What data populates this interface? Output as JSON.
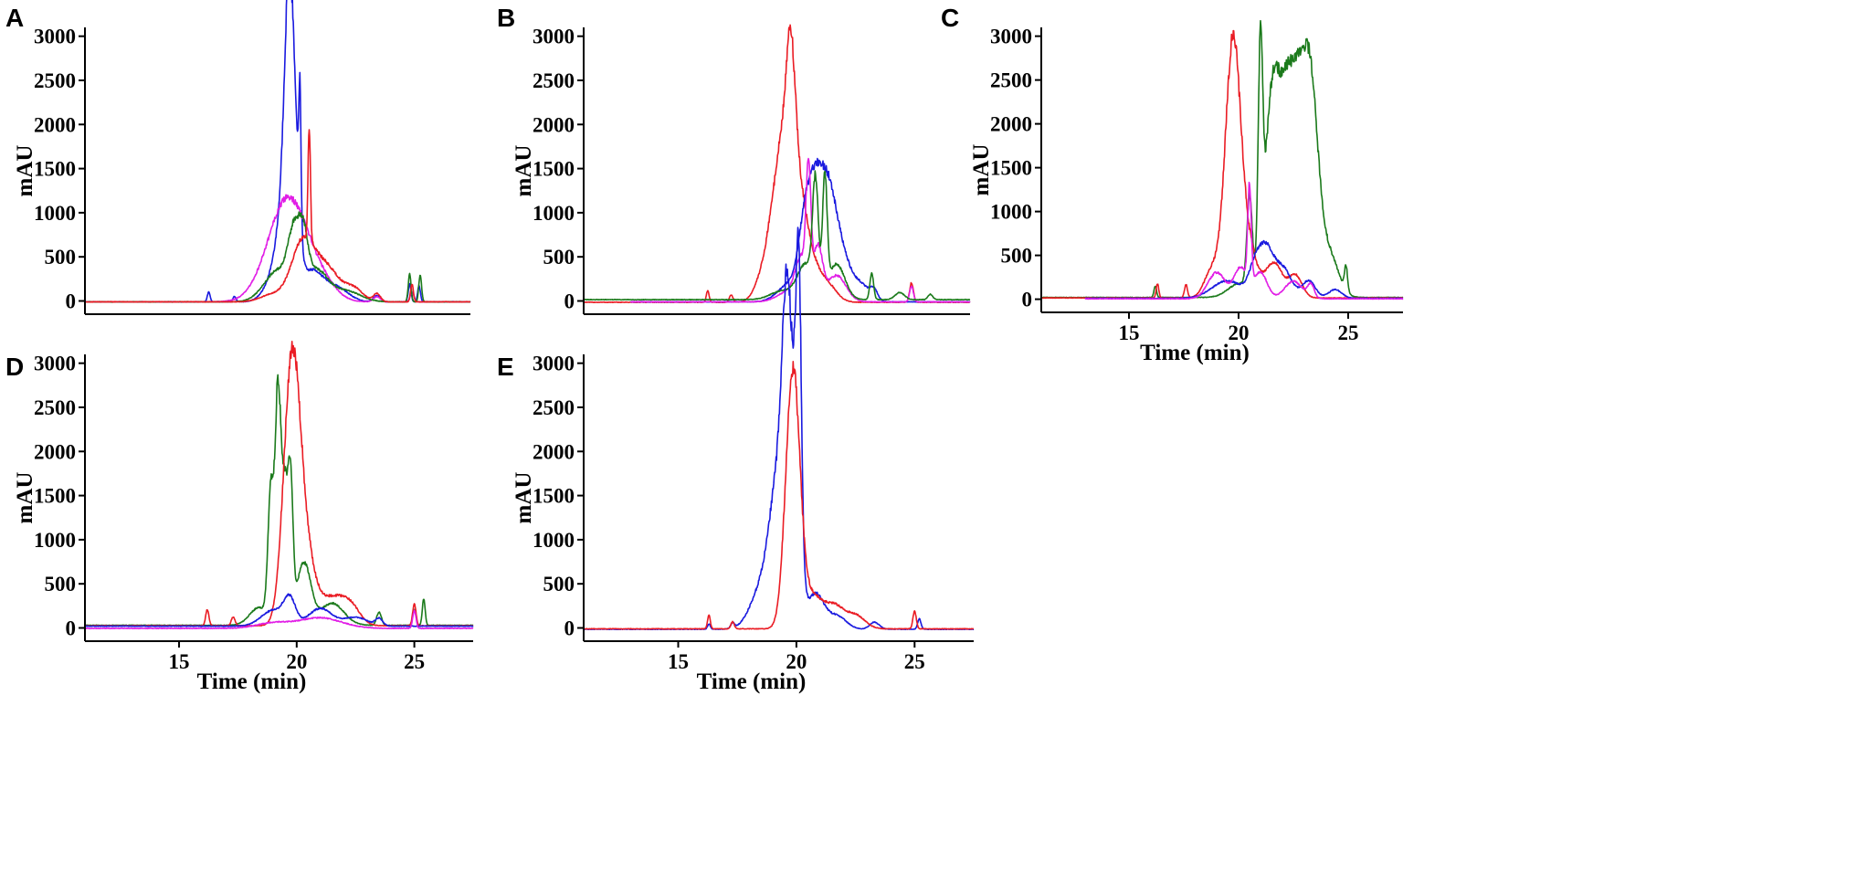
{
  "figure": {
    "panel_letters": [
      "A",
      "B",
      "C",
      "D",
      "E"
    ]
  },
  "series_colors": {
    "blue": "#1a1adf",
    "magenta": "#e11ee6",
    "green": "#1b7a1b",
    "red": "#ea1c24"
  },
  "chart_data": [
    {
      "panel": "A",
      "type": "line",
      "ylabel": "mAU",
      "xlabel": "",
      "xlim": [
        11,
        27.5
      ],
      "ylim": [
        -150,
        3100
      ],
      "yticks": [
        0,
        500,
        1000,
        1500,
        2000,
        2500,
        3000
      ],
      "xticks": [],
      "xtick_labels": [],
      "show_xtitle": false,
      "series": [
        {
          "name": "blue",
          "color": "#1a1adf",
          "base": -10,
          "start": 11,
          "peaks": [
            [
              16.3,
              110,
              0.06
            ],
            [
              17.4,
              60,
              0.07
            ],
            [
              19.2,
              300,
              0.45
            ],
            [
              19.5,
              700,
              0.3
            ],
            [
              19.75,
              2920,
              0.2
            ],
            [
              20.05,
              800,
              0.18
            ],
            [
              20.2,
              1450,
              0.05
            ],
            [
              20.7,
              350,
              0.5
            ],
            [
              21.8,
              150,
              0.5
            ],
            [
              23.5,
              70,
              0.15
            ],
            [
              24.9,
              200,
              0.06
            ],
            [
              25.3,
              180,
              0.06
            ]
          ]
        },
        {
          "name": "magenta",
          "color": "#e11ee6",
          "base": -10,
          "start": 11,
          "peaks": [
            [
              19.7,
              1180,
              0.85
            ],
            [
              21.2,
              140,
              0.6
            ],
            [
              23.5,
              60,
              0.15
            ],
            [
              25.0,
              110,
              0.08
            ]
          ]
        },
        {
          "name": "green",
          "color": "#1b7a1b",
          "base": -10,
          "start": 11,
          "peaks": [
            [
              19.3,
              360,
              0.6
            ],
            [
              19.95,
              600,
              0.25
            ],
            [
              20.35,
              500,
              0.2
            ],
            [
              20.9,
              350,
              0.5
            ],
            [
              22.2,
              120,
              0.6
            ],
            [
              24.9,
              310,
              0.06
            ],
            [
              25.35,
              300,
              0.06
            ]
          ]
        },
        {
          "name": "red",
          "color": "#ea1c24",
          "base": -10,
          "start": 11,
          "peaks": [
            [
              19.0,
              80,
              0.5
            ],
            [
              20.35,
              700,
              0.5
            ],
            [
              20.6,
              1260,
              0.05
            ],
            [
              21.4,
              350,
              0.5
            ],
            [
              22.5,
              150,
              0.4
            ],
            [
              23.5,
              90,
              0.15
            ],
            [
              25.0,
              200,
              0.06
            ]
          ]
        }
      ]
    },
    {
      "panel": "B",
      "type": "line",
      "ylabel": "mAU",
      "xlabel": "",
      "xlim": [
        11,
        27.5
      ],
      "ylim": [
        -150,
        3100
      ],
      "yticks": [
        0,
        500,
        1000,
        1500,
        2000,
        2500,
        3000
      ],
      "xticks": [],
      "xtick_labels": [],
      "show_xtitle": false,
      "series": [
        {
          "name": "red",
          "color": "#ea1c24",
          "base": -15,
          "start": 11,
          "peaks": [
            [
              16.3,
              130,
              0.06
            ],
            [
              17.3,
              80,
              0.08
            ],
            [
              18.5,
              80,
              0.3
            ],
            [
              19.6,
              1900,
              0.55
            ],
            [
              19.85,
              1100,
              0.18
            ],
            [
              20.4,
              500,
              0.5
            ],
            [
              21.4,
              180,
              0.4
            ],
            [
              25.0,
              220,
              0.08
            ]
          ]
        },
        {
          "name": "blue",
          "color": "#1a1adf",
          "base": -10,
          "start": 13,
          "peaks": [
            [
              19.8,
              200,
              0.5
            ],
            [
              20.5,
              900,
              0.3
            ],
            [
              21.0,
              1100,
              0.3
            ],
            [
              21.5,
              950,
              0.3
            ],
            [
              22.0,
              500,
              0.35
            ],
            [
              22.8,
              200,
              0.4
            ],
            [
              23.4,
              100,
              0.15
            ]
          ]
        },
        {
          "name": "magenta",
          "color": "#e11ee6",
          "base": -10,
          "start": 13,
          "peaks": [
            [
              19.8,
              120,
              0.5
            ],
            [
              20.3,
              450,
              0.25
            ],
            [
              20.6,
              1300,
              0.1
            ],
            [
              21.0,
              600,
              0.2
            ],
            [
              21.8,
              300,
              0.4
            ],
            [
              25.0,
              180,
              0.08
            ]
          ]
        },
        {
          "name": "green",
          "color": "#1b7a1b",
          "base": 15,
          "start": 11,
          "peaks": [
            [
              19.5,
              100,
              0.5
            ],
            [
              20.5,
              400,
              0.35
            ],
            [
              20.9,
              1200,
              0.12
            ],
            [
              21.3,
              1250,
              0.1
            ],
            [
              21.8,
              400,
              0.35
            ],
            [
              23.3,
              300,
              0.08
            ],
            [
              24.5,
              80,
              0.2
            ],
            [
              25.8,
              60,
              0.1
            ]
          ]
        }
      ]
    },
    {
      "panel": "C",
      "type": "line",
      "ylabel": "mAU",
      "xlabel": "Time (min)",
      "xlim": [
        11,
        27.5
      ],
      "ylim": [
        -150,
        3100
      ],
      "yticks": [
        0,
        500,
        1000,
        1500,
        2000,
        2500,
        3000
      ],
      "xticks": [
        15,
        20,
        25
      ],
      "xtick_labels": [
        "15",
        "20",
        "25"
      ],
      "show_xtitle": true,
      "series": [
        {
          "name": "green",
          "color": "#1b7a1b",
          "base": 20,
          "start": 11,
          "peaks": [
            [
              16.2,
              130,
              0.06
            ],
            [
              20.0,
              150,
              0.5
            ],
            [
              20.5,
              1000,
              0.12
            ],
            [
              21.0,
              2450,
              0.1
            ],
            [
              21.5,
              1300,
              0.3
            ],
            [
              22.4,
              2650,
              0.7
            ],
            [
              23.3,
              1500,
              0.35
            ],
            [
              24.2,
              400,
              0.4
            ],
            [
              24.9,
              280,
              0.07
            ]
          ]
        },
        {
          "name": "red",
          "color": "#ea1c24",
          "base": 15,
          "start": 11,
          "peaks": [
            [
              16.3,
              160,
              0.06
            ],
            [
              17.6,
              150,
              0.07
            ],
            [
              18.8,
              320,
              0.35
            ],
            [
              19.75,
              2930,
              0.35
            ],
            [
              20.5,
              500,
              0.35
            ],
            [
              21.6,
              400,
              0.4
            ],
            [
              22.6,
              250,
              0.3
            ]
          ]
        },
        {
          "name": "blue",
          "color": "#1a1adf",
          "base": 10,
          "start": 13,
          "peaks": [
            [
              19.5,
              200,
              0.7
            ],
            [
              20.8,
              380,
              0.3
            ],
            [
              21.3,
              450,
              0.3
            ],
            [
              22.0,
              350,
              0.4
            ],
            [
              23.2,
              200,
              0.3
            ],
            [
              24.4,
              100,
              0.3
            ]
          ]
        },
        {
          "name": "magenta",
          "color": "#e11ee6",
          "base": 5,
          "start": 13,
          "peaks": [
            [
              19.0,
              300,
              0.4
            ],
            [
              20.1,
              350,
              0.3
            ],
            [
              20.5,
              1100,
              0.08
            ],
            [
              21.0,
              300,
              0.3
            ],
            [
              22.5,
              200,
              0.4
            ],
            [
              23.3,
              150,
              0.15
            ]
          ]
        }
      ]
    },
    {
      "panel": "D",
      "type": "line",
      "ylabel": "mAU",
      "xlabel": "Time (min)",
      "xlim": [
        11,
        27.5
      ],
      "ylim": [
        -150,
        3100
      ],
      "yticks": [
        0,
        500,
        1000,
        1500,
        2000,
        2500,
        3000
      ],
      "xticks": [
        15,
        20,
        25
      ],
      "xtick_labels": [
        "15",
        "20",
        "25"
      ],
      "show_xtitle": true,
      "series": [
        {
          "name": "green",
          "color": "#1b7a1b",
          "base": 30,
          "start": 11,
          "peaks": [
            [
              18.4,
              200,
              0.4
            ],
            [
              18.9,
              1450,
              0.12
            ],
            [
              19.2,
              2500,
              0.12
            ],
            [
              19.5,
              1600,
              0.15
            ],
            [
              19.75,
              1300,
              0.1
            ],
            [
              20.3,
              700,
              0.3
            ],
            [
              21.5,
              250,
              0.5
            ],
            [
              23.5,
              150,
              0.1
            ],
            [
              25.0,
              180,
              0.07
            ],
            [
              25.4,
              300,
              0.06
            ]
          ]
        },
        {
          "name": "red",
          "color": "#ea1c24",
          "base": 25,
          "start": 11,
          "peaks": [
            [
              16.2,
              180,
              0.07
            ],
            [
              17.3,
              100,
              0.08
            ],
            [
              19.8,
              2920,
              0.35
            ],
            [
              20.4,
              700,
              0.4
            ],
            [
              21.5,
              300,
              0.5
            ],
            [
              22.3,
              200,
              0.4
            ],
            [
              25.0,
              250,
              0.07
            ]
          ]
        },
        {
          "name": "blue",
          "color": "#1a1adf",
          "base": 20,
          "start": 11,
          "peaks": [
            [
              19.0,
              180,
              0.5
            ],
            [
              19.7,
              280,
              0.25
            ],
            [
              21.0,
              200,
              0.5
            ],
            [
              22.5,
              100,
              0.5
            ],
            [
              23.5,
              80,
              0.15
            ]
          ]
        },
        {
          "name": "magenta",
          "color": "#e11ee6",
          "base": -5,
          "start": 11,
          "peaks": [
            [
              19.0,
              60,
              0.7
            ],
            [
              21.0,
              120,
              0.9
            ],
            [
              25.0,
              200,
              0.07
            ]
          ]
        }
      ]
    },
    {
      "panel": "E",
      "type": "line",
      "ylabel": "mAU",
      "xlabel": "Time (min)",
      "xlim": [
        11,
        27.5
      ],
      "ylim": [
        -150,
        3100
      ],
      "yticks": [
        0,
        500,
        1000,
        1500,
        2000,
        2500,
        3000
      ],
      "xticks": [
        15,
        20,
        25
      ],
      "xtick_labels": [
        "15",
        "20",
        "25"
      ],
      "show_xtitle": true,
      "series": [
        {
          "name": "blue",
          "color": "#1a1adf",
          "base": -15,
          "start": 11,
          "peaks": [
            [
              16.3,
              60,
              0.06
            ],
            [
              17.3,
              60,
              0.08
            ],
            [
              18.6,
              500,
              0.5
            ],
            [
              19.25,
              1500,
              0.35
            ],
            [
              19.6,
              2800,
              0.2
            ],
            [
              20.0,
              2000,
              0.2
            ],
            [
              20.1,
              2500,
              0.1
            ],
            [
              20.8,
              400,
              0.35
            ],
            [
              21.7,
              150,
              0.4
            ],
            [
              23.3,
              80,
              0.2
            ],
            [
              25.2,
              120,
              0.07
            ]
          ]
        },
        {
          "name": "red",
          "color": "#ea1c24",
          "base": -10,
          "start": 11,
          "peaks": [
            [
              16.3,
              150,
              0.06
            ],
            [
              17.3,
              80,
              0.07
            ],
            [
              19.85,
              2930,
              0.3
            ],
            [
              20.7,
              350,
              0.4
            ],
            [
              21.6,
              250,
              0.4
            ],
            [
              22.5,
              150,
              0.4
            ],
            [
              25.0,
              200,
              0.07
            ]
          ]
        }
      ]
    }
  ]
}
